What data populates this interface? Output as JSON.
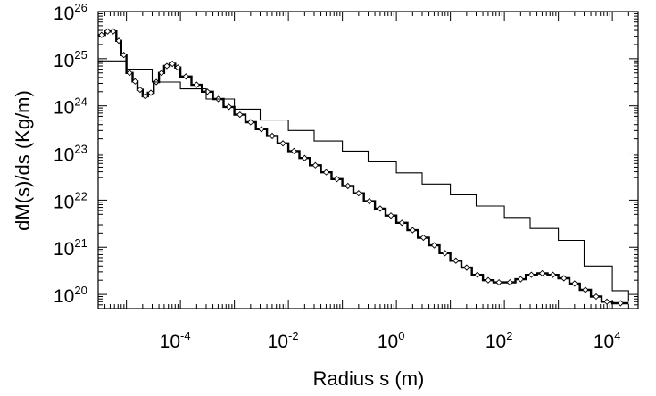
{
  "chart_data": {
    "type": "line",
    "title": "",
    "xlabel": "Radius s (m)",
    "ylabel": "dM(s)/ds (Kg/m)",
    "x_scale": "log",
    "y_scale": "log",
    "xlim": [
      3e-06,
      30000.0
    ],
    "ylim": [
      5e+19,
      1e+26
    ],
    "grid": false,
    "legend": "none",
    "x_ticks": [
      {
        "base": "10",
        "exp": "-4",
        "value": 0.0001
      },
      {
        "base": "10",
        "exp": "-2",
        "value": 0.01
      },
      {
        "base": "10",
        "exp": "0",
        "value": 1
      },
      {
        "base": "10",
        "exp": "2",
        "value": 100.0
      },
      {
        "base": "10",
        "exp": "4",
        "value": 10000.0
      }
    ],
    "y_ticks": [
      {
        "base": "10",
        "exp": "20",
        "value": 1e+20
      },
      {
        "base": "10",
        "exp": "21",
        "value": 1e+21
      },
      {
        "base": "10",
        "exp": "22",
        "value": 1e+22
      },
      {
        "base": "10",
        "exp": "23",
        "value": 1e+23
      },
      {
        "base": "10",
        "exp": "24",
        "value": 1e+24
      },
      {
        "base": "10",
        "exp": "25",
        "value": 1e+25
      },
      {
        "base": "10",
        "exp": "26",
        "value": 1e+26
      }
    ],
    "series": [
      {
        "style": "thick-step-with-diamonds",
        "x": [
          3e-06,
          4e-06,
          5e-06,
          6.5e-06,
          8e-06,
          1e-05,
          1.3e-05,
          1.6e-05,
          2e-05,
          2.5e-05,
          3.2e-05,
          4e-05,
          5e-05,
          6.3e-05,
          8e-05,
          0.0001,
          0.00016,
          0.00025,
          0.0004,
          0.00063,
          0.001,
          0.0016,
          0.0025,
          0.004,
          0.0063,
          0.01,
          0.016,
          0.025,
          0.04,
          0.063,
          0.1,
          0.16,
          0.25,
          0.4,
          0.63,
          1,
          1.6,
          2.5,
          4,
          6.3,
          10,
          16,
          25,
          40,
          63,
          100,
          160,
          250,
          400,
          630,
          1000,
          1600,
          2500,
          4000,
          6300,
          10000,
          20000
        ],
        "y": [
          3.2e+25,
          3.8e+25,
          3.8e+25,
          2.4e+25,
          1.2e+25,
          5e+24,
          3.3e+24,
          2.2e+24,
          1.6e+24,
          1.9e+24,
          3.2e+24,
          5e+24,
          7e+24,
          7.8e+24,
          6.5e+24,
          4.2e+24,
          2.8e+24,
          2e+24,
          1.4e+24,
          9.5e+23,
          6.5e+23,
          4.5e+23,
          3.2e+23,
          2.3e+23,
          1.6e+23,
          1.1e+23,
          7.8e+22,
          5.5e+22,
          3.9e+22,
          2.8e+22,
          2e+22,
          1.4e+22,
          9.5e+21,
          6.6e+21,
          4.7e+21,
          3.3e+21,
          2.3e+21,
          1.6e+21,
          1.1e+21,
          7.5e+20,
          5.2e+20,
          3.7e+20,
          2.6e+20,
          2e+20,
          1.8e+20,
          1.8e+20,
          2.1e+20,
          2.6e+20,
          2.8e+20,
          2.6e+20,
          2.2e+20,
          1.7e+20,
          1.25e+20,
          9e+19,
          7e+19,
          6.5e+19,
          6.5e+19
        ]
      },
      {
        "style": "thin-step",
        "x": [
          3e-06,
          1e-05,
          3e-05,
          0.0001,
          0.0003,
          0.001,
          0.003,
          0.01,
          0.03,
          0.1,
          0.3,
          1,
          3,
          10,
          30,
          100,
          300,
          1000,
          3000,
          10000,
          20000
        ],
        "y": [
          9e+24,
          6e+24,
          3.2e+24,
          2.3e+24,
          1.4e+24,
          8.5e+23,
          5e+23,
          3e+23,
          1.8e+23,
          1.1e+23,
          6.5e+22,
          3.8e+22,
          2.2e+22,
          1.3e+22,
          7.5e+21,
          4.3e+21,
          2.5e+21,
          1.4e+21,
          4e+20,
          1.2e+20,
          7e+19
        ]
      }
    ]
  }
}
